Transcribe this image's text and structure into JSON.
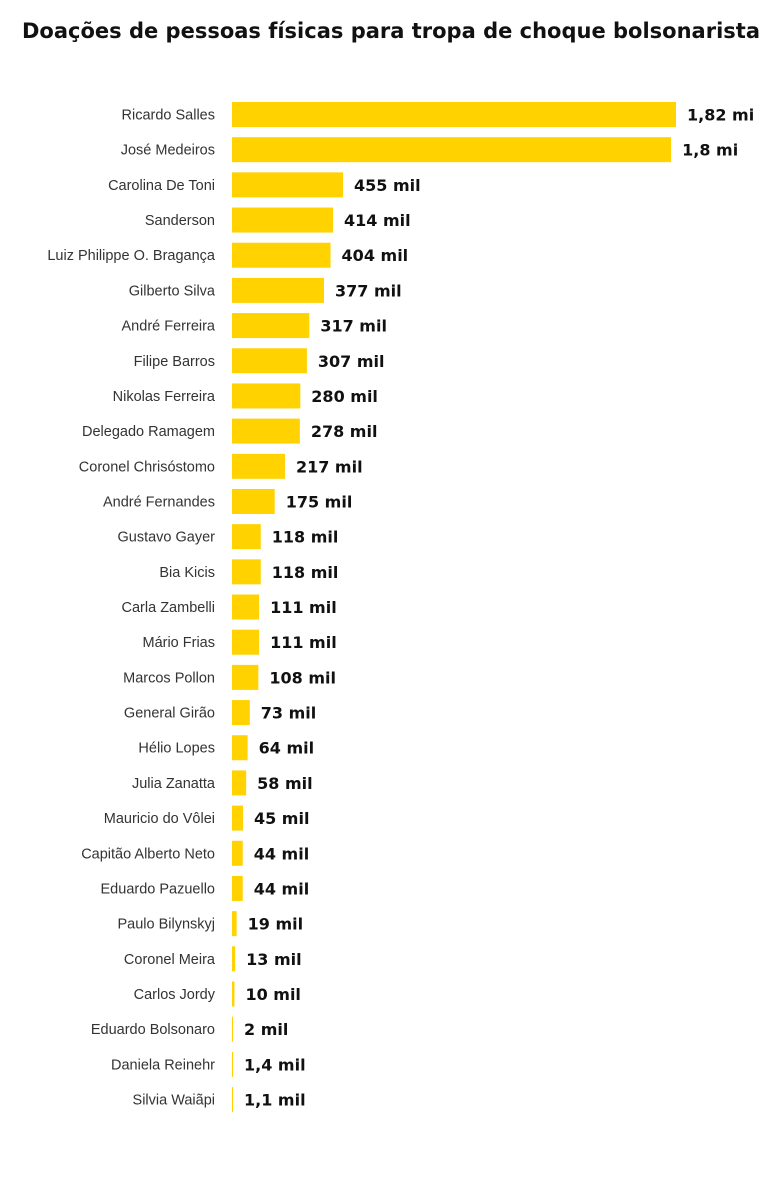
{
  "chart_data": {
    "type": "bar",
    "orientation": "horizontal",
    "title": "Doações de pessoas físicas para tropa de choque bolsonarista",
    "xlabel": "",
    "ylabel": "",
    "bar_color": "#FFD200",
    "grid": false,
    "legend": "none",
    "categories": [
      "Ricardo Salles",
      "José Medeiros",
      "Carolina De Toni",
      "Sanderson",
      "Luiz Philippe O. Bragança",
      "Gilberto Silva",
      "André Ferreira",
      "Filipe Barros",
      "Nikolas Ferreira",
      "Delegado Ramagem",
      "Coronel Chrisóstomo",
      "André Fernandes",
      "Gustavo Gayer",
      "Bia Kicis",
      "Carla Zambelli",
      "Mário Frias",
      "Marcos Pollon",
      "General Girão",
      "Hélio Lopes",
      "Julia Zanatta",
      "Mauricio do Vôlei",
      "Capitão Alberto Neto",
      "Eduardo Pazuello",
      "Paulo Bilynskyj",
      "Coronel Meira",
      "Carlos Jordy",
      "Eduardo Bolsonaro",
      "Daniela Reinehr",
      "Silvia Waiãpi"
    ],
    "values": [
      1820000,
      1800000,
      455000,
      414000,
      404000,
      377000,
      317000,
      307000,
      280000,
      278000,
      217000,
      175000,
      118000,
      118000,
      111000,
      111000,
      108000,
      73000,
      64000,
      58000,
      45000,
      44000,
      44000,
      19000,
      13000,
      10000,
      2000,
      1400,
      1100
    ],
    "labels": [
      "1,82 mi",
      "1,8 mi",
      "455 mil",
      "414 mil",
      "404 mil",
      "377 mil",
      "317 mil",
      "307 mil",
      "280 mil",
      "278 mil",
      "217 mil",
      "175 mil",
      "118 mil",
      "118 mil",
      "111 mil",
      "111 mil",
      "108 mil",
      "73 mil",
      "64 mil",
      "58 mil",
      "45 mil",
      "44 mil",
      "44 mil",
      "19 mil",
      "13 mil",
      "10 mil",
      "2 mil",
      "1,4 mil",
      "1,1 mil"
    ],
    "xlim": [
      0,
      1820000
    ]
  }
}
